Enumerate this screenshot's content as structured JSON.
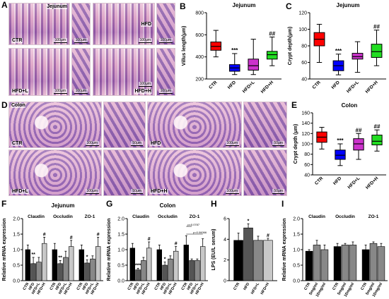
{
  "panel_labels": {
    "A": "A",
    "B": "B",
    "C": "C",
    "D": "D",
    "E": "E",
    "F": "F",
    "G": "G",
    "H": "H",
    "I": "I"
  },
  "panelA": {
    "section": "Jejunum",
    "tiles": [
      {
        "label": "CTR",
        "scale": "100μm"
      },
      {
        "label": "",
        "scale": "100μm"
      },
      {
        "label": "HFD",
        "scale": "100μm"
      },
      {
        "label": "",
        "scale": "100μm"
      },
      {
        "label": "HFD+L",
        "scale": "100μm"
      },
      {
        "label": "",
        "scale": "100μm"
      },
      {
        "label": "HFD+H",
        "scale": "100μm"
      },
      {
        "label": "",
        "scale": "100μm"
      }
    ]
  },
  "panelD": {
    "section": "Colon",
    "tiles": [
      {
        "label": "CTR",
        "scale": "100μm"
      },
      {
        "label": "",
        "scale": "50μm"
      },
      {
        "label": "HFD",
        "scale": "100μm"
      },
      {
        "label": "",
        "scale": "50μm"
      },
      {
        "label": "HFD+L",
        "scale": "100μm"
      },
      {
        "label": "",
        "scale": "50μm"
      },
      {
        "label": "HFD+H",
        "scale": "100μm"
      },
      {
        "label": "",
        "scale": "50μm"
      }
    ]
  },
  "colors": {
    "CTR": "#ff0000",
    "HFD": "#0000ff",
    "HFD+L": "#cc33cc",
    "HFD+H": "#22dd22"
  },
  "chart_data": [
    {
      "id": "B",
      "type": "box",
      "title": "Jejunum",
      "ylabel": "Villus length(μm)",
      "ylim": [
        200,
        800
      ],
      "yticks": [
        200,
        400,
        600,
        800
      ],
      "categories": [
        "CTR",
        "HFD",
        "HFD+L",
        "HFD+H"
      ],
      "boxes": [
        {
          "min": 400,
          "q1": 460,
          "median": 495,
          "q3": 535,
          "max": 640
        },
        {
          "min": 240,
          "q1": 270,
          "median": 300,
          "q3": 330,
          "max": 430
        },
        {
          "min": 240,
          "q1": 280,
          "median": 320,
          "q3": 380,
          "max": 560
        },
        {
          "min": 320,
          "q1": 380,
          "median": 420,
          "q3": 450,
          "max": 580
        }
      ],
      "annotations": [
        "",
        "***",
        "",
        "##"
      ]
    },
    {
      "id": "C",
      "type": "box",
      "title": "Jejunum",
      "ylabel": "Crypt depth(μm)",
      "ylim": [
        40,
        120
      ],
      "yticks": [
        40,
        60,
        80,
        100,
        120
      ],
      "categories": [
        "CTR",
        "HFD",
        "HFD+L",
        "HFD+H"
      ],
      "boxes": [
        {
          "min": 60,
          "q1": 80,
          "median": 88,
          "q3": 96,
          "max": 106
        },
        {
          "min": 45,
          "q1": 50,
          "median": 56,
          "q3": 62,
          "max": 70
        },
        {
          "min": 48,
          "q1": 64,
          "median": 67,
          "q3": 71,
          "max": 85
        },
        {
          "min": 56,
          "q1": 66,
          "median": 73,
          "q3": 82,
          "max": 99
        }
      ],
      "annotations": [
        "",
        "***",
        "",
        "##"
      ]
    },
    {
      "id": "E",
      "type": "box",
      "title": "Colon",
      "ylabel": "Crypt depth (μm)",
      "ylim": [
        40,
        160
      ],
      "yticks": [
        40,
        60,
        80,
        100,
        120,
        140,
        160
      ],
      "categories": [
        "CTR",
        "HFD",
        "HFD+L",
        "HFD+H"
      ],
      "boxes": [
        {
          "min": 90,
          "q1": 103,
          "median": 113,
          "q3": 123,
          "max": 132
        },
        {
          "min": 58,
          "q1": 70,
          "median": 78,
          "q3": 88,
          "max": 100
        },
        {
          "min": 70,
          "q1": 88,
          "median": 100,
          "q3": 110,
          "max": 120
        },
        {
          "min": 86,
          "q1": 98,
          "median": 105,
          "q3": 117,
          "max": 127
        }
      ],
      "annotations": [
        "",
        "***",
        "##",
        "##"
      ]
    },
    {
      "id": "F",
      "type": "bar",
      "title": "Jejunum",
      "ylabel": "Relative mRNA expression",
      "ylim": [
        0,
        2.0
      ],
      "yticks": [
        0,
        0.5,
        1.0,
        1.5,
        2.0
      ],
      "group_labels": [
        "Claudin",
        "Occludin",
        "ZO-1"
      ],
      "categories": [
        "CTR",
        "HFD",
        "HFD+L",
        "HFD+H"
      ],
      "groups": [
        {
          "values": [
            1.0,
            0.55,
            0.6,
            1.2
          ],
          "errors": [
            0.15,
            0.2,
            0.15,
            0.2
          ],
          "annotations": [
            "",
            "**",
            "",
            "#"
          ]
        },
        {
          "values": [
            1.0,
            0.55,
            0.75,
            1.1
          ],
          "errors": [
            0.2,
            0.1,
            0.2,
            0.2
          ],
          "annotations": [
            "",
            "**",
            "",
            "#"
          ]
        },
        {
          "values": [
            1.0,
            0.57,
            0.7,
            1.1
          ],
          "errors": [
            0.15,
            0.1,
            0.1,
            0.3
          ],
          "annotations": [
            "",
            "*",
            "",
            "#"
          ]
        }
      ]
    },
    {
      "id": "G",
      "type": "bar",
      "title": "Colon",
      "ylabel": "Relative mRNA expression",
      "ylim": [
        0,
        2.0
      ],
      "yticks": [
        0,
        0.5,
        1.0,
        1.5,
        2.0
      ],
      "group_labels": [
        "Claudin",
        "Occludin",
        "ZO-1"
      ],
      "categories": [
        "CTR",
        "HFD",
        "HFD+L",
        "HFD+H"
      ],
      "groups": [
        {
          "values": [
            1.05,
            0.35,
            0.65,
            1.05
          ],
          "errors": [
            0.15,
            0.05,
            0.1,
            0.2
          ],
          "annotations": [
            "",
            "***",
            "",
            "#"
          ]
        },
        {
          "values": [
            1.0,
            0.5,
            0.7,
            0.95
          ],
          "errors": [
            0.15,
            0.1,
            0.1,
            0.15
          ],
          "annotations": [
            "",
            "*",
            "",
            "#"
          ]
        },
        {
          "values": [
            1.15,
            0.65,
            0.65,
            1.1
          ],
          "errors": [
            0.3,
            0.05,
            0.05,
            0.25
          ],
          "annotations": [
            "",
            "",
            "",
            ""
          ]
        }
      ],
      "pvalues": [
        "p=0.0787",
        "p=0.06066"
      ]
    },
    {
      "id": "H",
      "type": "bar",
      "title": "",
      "ylabel": "LPS (EU/L serum)",
      "ylim": [
        0,
        6
      ],
      "yticks": [
        0,
        2,
        4,
        6
      ],
      "categories": [
        "CTR",
        "HFD",
        "HFD+L",
        "HFD+H"
      ],
      "values": [
        3.9,
        5.1,
        3.9,
        3.9
      ],
      "errors": [
        0.7,
        0.4,
        0.4,
        0.2
      ],
      "annotations": [
        "",
        "*",
        "",
        "#"
      ]
    },
    {
      "id": "I",
      "type": "bar",
      "title": "",
      "ylabel": "Relative mRNA expression",
      "ylim": [
        0,
        2.0
      ],
      "yticks": [
        0,
        0.5,
        1.0,
        1.5,
        2.0
      ],
      "group_labels": [
        "Claudin",
        "Occludin",
        "ZO-1"
      ],
      "categories": [
        "CTR",
        "5mg/ml",
        "10mg/ml"
      ],
      "groups": [
        {
          "values": [
            0.95,
            1.15,
            1.0
          ],
          "errors": [
            0.05,
            0.15,
            0.15
          ],
          "annotations": [
            "",
            "",
            ""
          ]
        },
        {
          "values": [
            1.1,
            1.15,
            1.15
          ],
          "errors": [
            0.1,
            0.05,
            0.1
          ],
          "annotations": [
            "",
            "",
            ""
          ]
        },
        {
          "values": [
            1.0,
            1.2,
            1.1
          ],
          "errors": [
            0.15,
            0.05,
            0.1
          ],
          "annotations": [
            "",
            "",
            ""
          ]
        }
      ]
    }
  ]
}
